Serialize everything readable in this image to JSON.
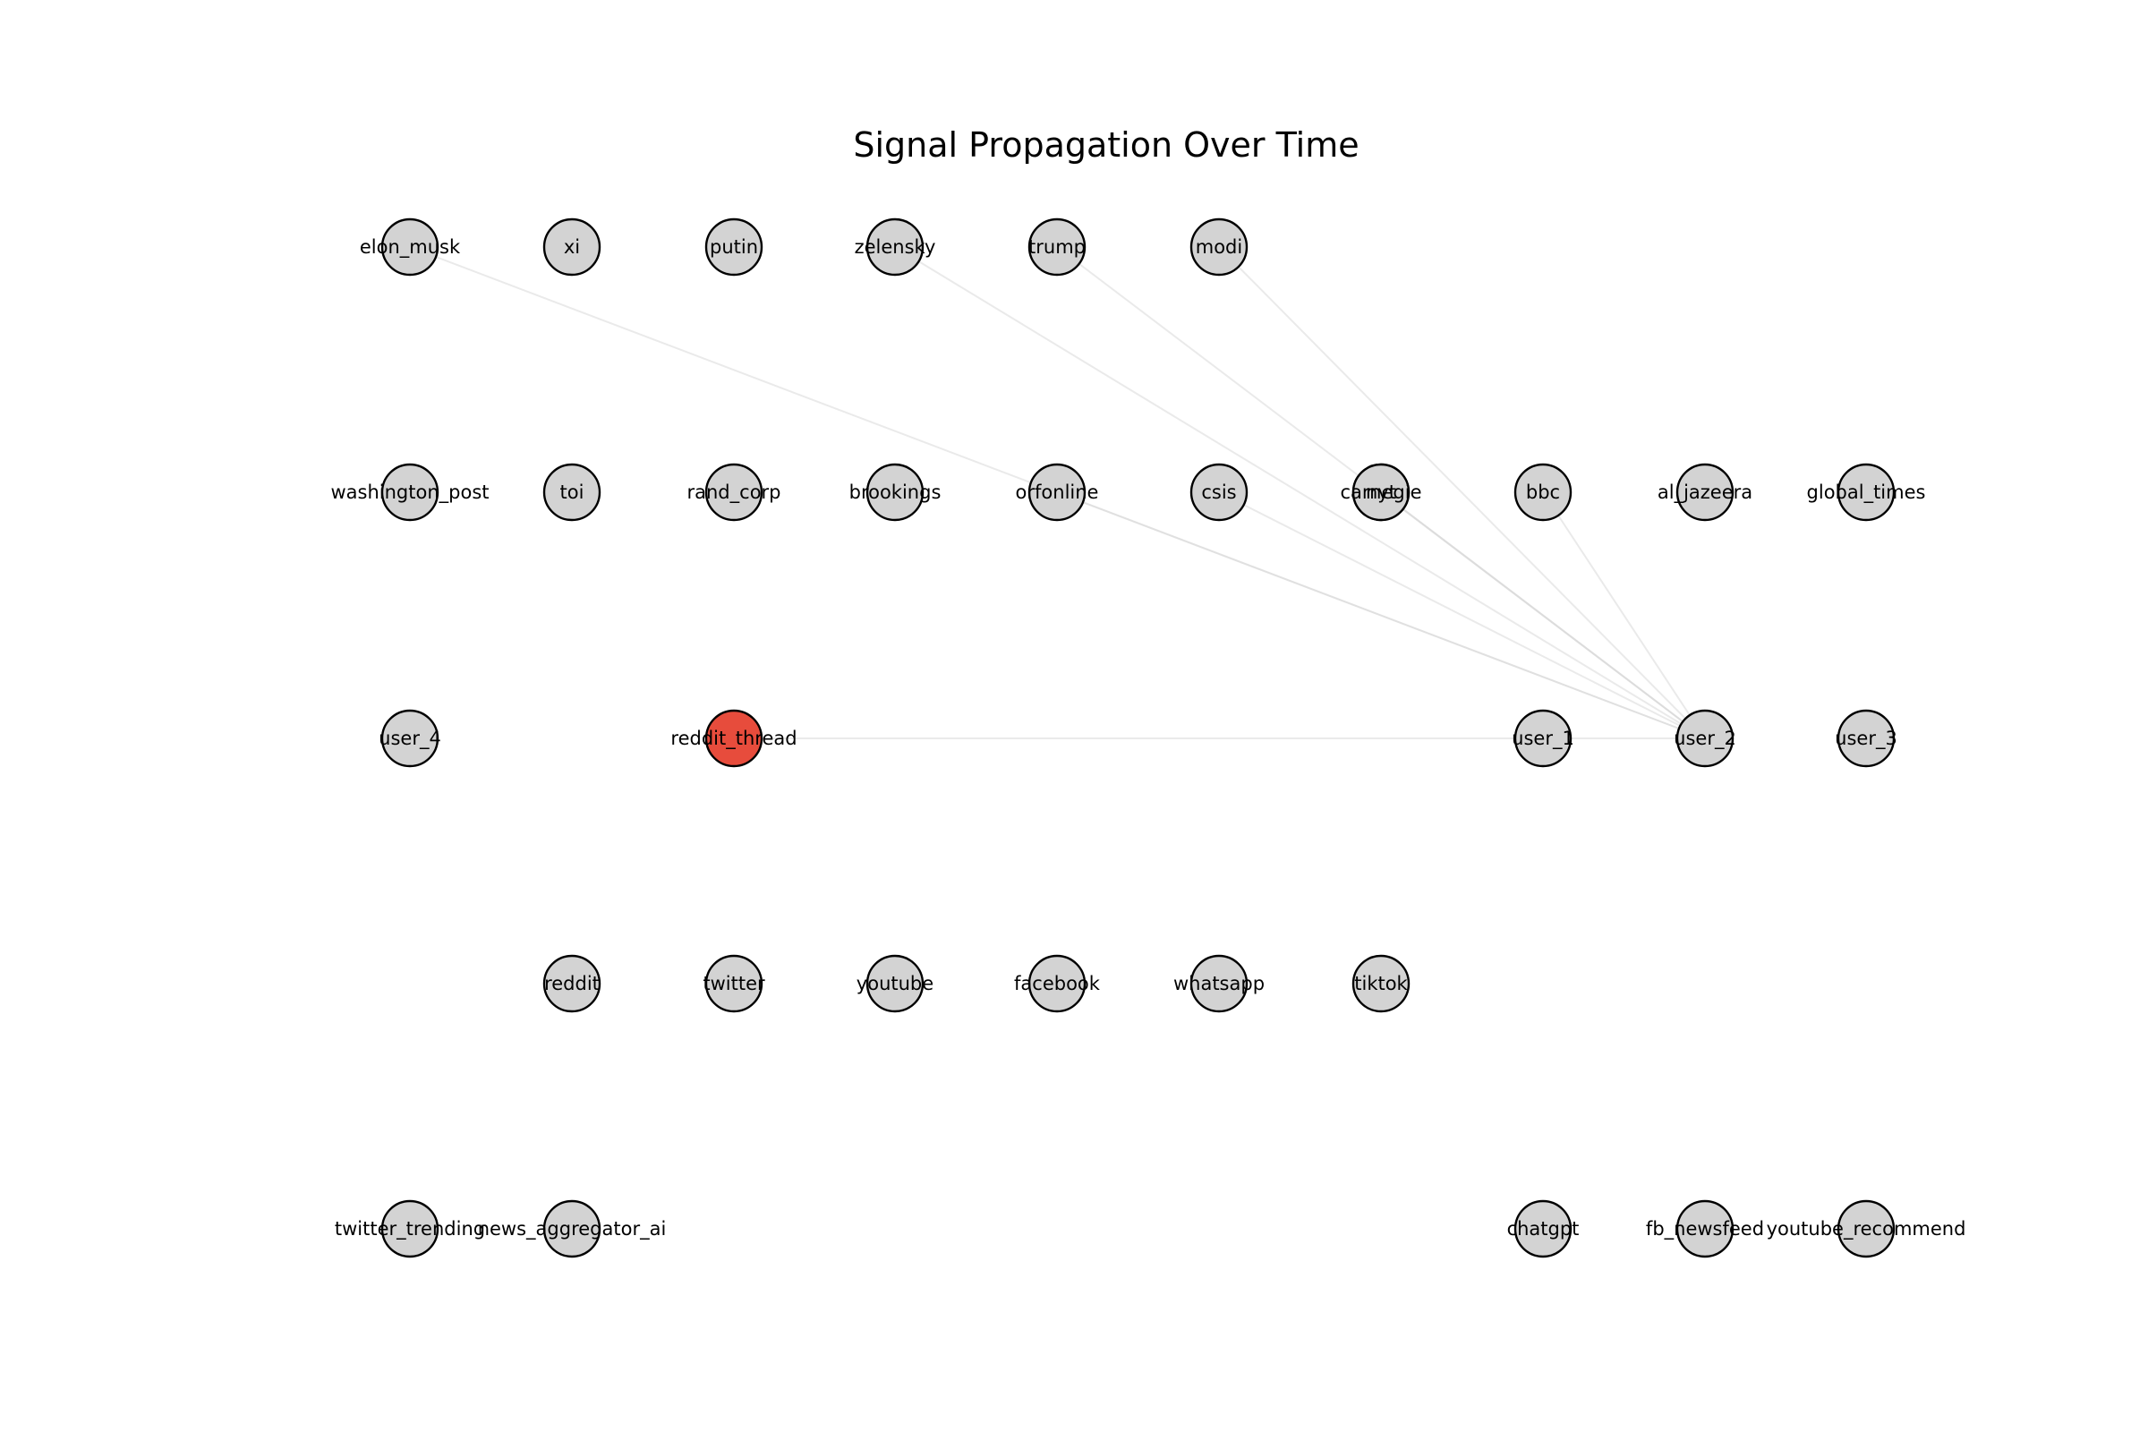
{
  "title": "Signal Propagation Over Time",
  "colors": {
    "node_default": "#d3d3d3",
    "node_active": "#e74c3c",
    "edge": "#d9d9d9",
    "outline": "#000000"
  },
  "graph": {
    "nodes": [
      {
        "id": "elon_musk",
        "label": "elon_musk",
        "active": false
      },
      {
        "id": "xi",
        "label": "xi",
        "active": false
      },
      {
        "id": "putin",
        "label": "putin",
        "active": false
      },
      {
        "id": "zelensky",
        "label": "zelensky",
        "active": false
      },
      {
        "id": "trump",
        "label": "trump",
        "active": false
      },
      {
        "id": "modi",
        "label": "modi",
        "active": false
      },
      {
        "id": "washington_post",
        "label": "washington_post",
        "active": false
      },
      {
        "id": "toi",
        "label": "toi",
        "active": false
      },
      {
        "id": "rand_corp",
        "label": "rand_corp",
        "active": false
      },
      {
        "id": "brookings",
        "label": "brookings",
        "active": false
      },
      {
        "id": "orfonline",
        "label": "orfonline",
        "active": false
      },
      {
        "id": "csis",
        "label": "csis",
        "active": false
      },
      {
        "id": "carnegie",
        "label": "carnegie",
        "active": false
      },
      {
        "id": "nyt",
        "label": "nyt",
        "active": false
      },
      {
        "id": "bbc",
        "label": "bbc",
        "active": false
      },
      {
        "id": "al_jazeera",
        "label": "al_jazeera",
        "active": false
      },
      {
        "id": "global_times",
        "label": "global_times",
        "active": false
      },
      {
        "id": "user_4",
        "label": "user_4",
        "active": false
      },
      {
        "id": "reddit_thread",
        "label": "reddit_thread",
        "active": true
      },
      {
        "id": "user_1",
        "label": "user_1",
        "active": false
      },
      {
        "id": "user_2",
        "label": "user_2",
        "active": false
      },
      {
        "id": "user_3",
        "label": "user_3",
        "active": false
      },
      {
        "id": "reddit",
        "label": "reddit",
        "active": false
      },
      {
        "id": "twitter",
        "label": "twitter",
        "active": false
      },
      {
        "id": "youtube",
        "label": "youtube",
        "active": false
      },
      {
        "id": "facebook",
        "label": "facebook",
        "active": false
      },
      {
        "id": "whatsapp",
        "label": "whatsapp",
        "active": false
      },
      {
        "id": "tiktok",
        "label": "tiktok",
        "active": false
      },
      {
        "id": "twitter_trending",
        "label": "twitter_trending",
        "active": false
      },
      {
        "id": "news_aggregator_ai",
        "label": "news_aggregator_ai",
        "active": false
      },
      {
        "id": "chatgpt",
        "label": "chatgpt",
        "active": false
      },
      {
        "id": "fb_newsfeed",
        "label": "fb_newsfeed",
        "active": false
      },
      {
        "id": "youtube_recommend",
        "label": "youtube_recommend",
        "active": false
      }
    ],
    "edges": [
      {
        "source": "elon_musk",
        "target": "user_2"
      },
      {
        "source": "zelensky",
        "target": "user_2"
      },
      {
        "source": "trump",
        "target": "user_2"
      },
      {
        "source": "modi",
        "target": "user_2"
      },
      {
        "source": "orfonline",
        "target": "user_2"
      },
      {
        "source": "csis",
        "target": "user_2"
      },
      {
        "source": "carnegie",
        "target": "user_2"
      },
      {
        "source": "nyt",
        "target": "user_2"
      },
      {
        "source": "bbc",
        "target": "user_2"
      },
      {
        "source": "reddit_thread",
        "target": "user_1"
      },
      {
        "source": "user_1",
        "target": "user_2"
      }
    ]
  }
}
